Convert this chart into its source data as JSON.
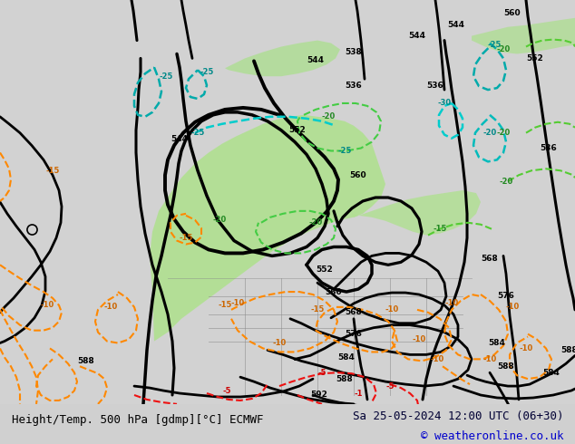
{
  "title_left": "Height/Temp. 500 hPa [gdmp][°C] ECMWF",
  "title_right": "Sa 25-05-2024 12:00 UTC (06+30)",
  "copyright": "© weatheronline.co.uk",
  "bg_color": "#d0d0d0",
  "land_color": "#c8c8c8",
  "green_fill_color": "#b8e6a0",
  "figsize": [
    6.34,
    4.9
  ],
  "dpi": 100,
  "bottom_bar_color": "#e8e8e8",
  "text_color_left": "#000000",
  "text_color_right": "#000033",
  "copyright_color": "#0000cc"
}
